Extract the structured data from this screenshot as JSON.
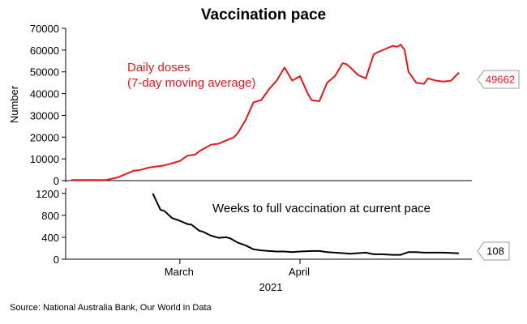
{
  "chart_data": [
    {
      "type": "line",
      "title": "Vaccination pace",
      "ylabel": "Number",
      "ylim": [
        0,
        70000
      ],
      "yticks": [
        "0",
        "10000",
        "20000",
        "30000",
        "40000",
        "50000",
        "60000",
        "70000"
      ],
      "grid": false,
      "series": [
        {
          "name": "Daily doses\n(7-day moving average)",
          "color": "#e8161b",
          "end_label": "49662",
          "x": [
            "2021-02-01",
            "2021-02-04",
            "2021-02-07",
            "2021-02-10",
            "2021-02-13",
            "2021-02-15",
            "2021-02-17",
            "2021-02-19",
            "2021-02-21",
            "2021-02-23",
            "2021-02-25",
            "2021-02-27",
            "2021-03-01",
            "2021-03-03",
            "2021-03-05",
            "2021-03-06",
            "2021-03-07",
            "2021-03-09",
            "2021-03-11",
            "2021-03-13",
            "2021-03-15",
            "2021-03-16",
            "2021-03-17",
            "2021-03-18",
            "2021-03-20",
            "2021-03-22",
            "2021-03-24",
            "2021-03-26",
            "2021-03-28",
            "2021-03-30",
            "2021-04-01",
            "2021-04-02",
            "2021-04-03",
            "2021-04-04",
            "2021-04-06",
            "2021-04-08",
            "2021-04-10",
            "2021-04-12",
            "2021-04-13",
            "2021-04-14",
            "2021-04-16",
            "2021-04-18",
            "2021-04-20",
            "2021-04-21",
            "2021-04-23",
            "2021-04-25",
            "2021-04-26",
            "2021-04-27",
            "2021-04-28",
            "2021-04-29",
            "2021-05-01",
            "2021-05-03",
            "2021-05-04",
            "2021-05-06",
            "2021-05-08",
            "2021-05-10",
            "2021-05-12"
          ],
          "values": [
            300,
            300,
            300,
            300,
            1500,
            3000,
            4500,
            5000,
            6000,
            6500,
            7000,
            8000,
            9000,
            11500,
            12000,
            13500,
            14500,
            16500,
            17000,
            18500,
            20000,
            22000,
            25000,
            28000,
            36000,
            37000,
            42000,
            46000,
            52000,
            46000,
            48000,
            44000,
            40000,
            37000,
            36500,
            45000,
            48000,
            54000,
            53500,
            52000,
            48500,
            47000,
            58000,
            59000,
            60500,
            62000,
            61500,
            62500,
            60000,
            50000,
            45000,
            44500,
            47000,
            46000,
            45500,
            46000,
            49662
          ]
        }
      ]
    },
    {
      "type": "line",
      "ylim": [
        0,
        1300
      ],
      "yticks": [
        "0",
        "400",
        "800",
        "1200"
      ],
      "xticks": [
        "March",
        "April"
      ],
      "xlabel": "2021",
      "grid": false,
      "series": [
        {
          "name": "Weeks to full vaccination at current pace",
          "color": "#000000",
          "end_label": "108",
          "x": [
            "2021-02-22",
            "2021-02-24",
            "2021-02-25",
            "2021-02-27",
            "2021-03-01",
            "2021-03-03",
            "2021-03-04",
            "2021-03-06",
            "2021-03-07",
            "2021-03-09",
            "2021-03-11",
            "2021-03-13",
            "2021-03-14",
            "2021-03-16",
            "2021-03-18",
            "2021-03-20",
            "2021-03-22",
            "2021-03-24",
            "2021-03-26",
            "2021-03-28",
            "2021-03-30",
            "2021-04-01",
            "2021-04-04",
            "2021-04-06",
            "2021-04-08",
            "2021-04-10",
            "2021-04-12",
            "2021-04-14",
            "2021-04-16",
            "2021-04-18",
            "2021-04-20",
            "2021-04-22",
            "2021-04-25",
            "2021-04-27",
            "2021-04-29",
            "2021-05-01",
            "2021-05-03",
            "2021-05-05",
            "2021-05-08",
            "2021-05-10",
            "2021-05-12"
          ],
          "values": [
            1200,
            900,
            880,
            750,
            700,
            640,
            630,
            520,
            500,
            430,
            390,
            400,
            380,
            300,
            250,
            180,
            160,
            150,
            140,
            140,
            130,
            140,
            150,
            150,
            130,
            120,
            110,
            100,
            110,
            120,
            90,
            90,
            80,
            80,
            130,
            130,
            120,
            120,
            120,
            115,
            108
          ]
        }
      ]
    }
  ],
  "title": "Vaccination pace",
  "source": "Source: National Australia Bank, Our World in Data"
}
